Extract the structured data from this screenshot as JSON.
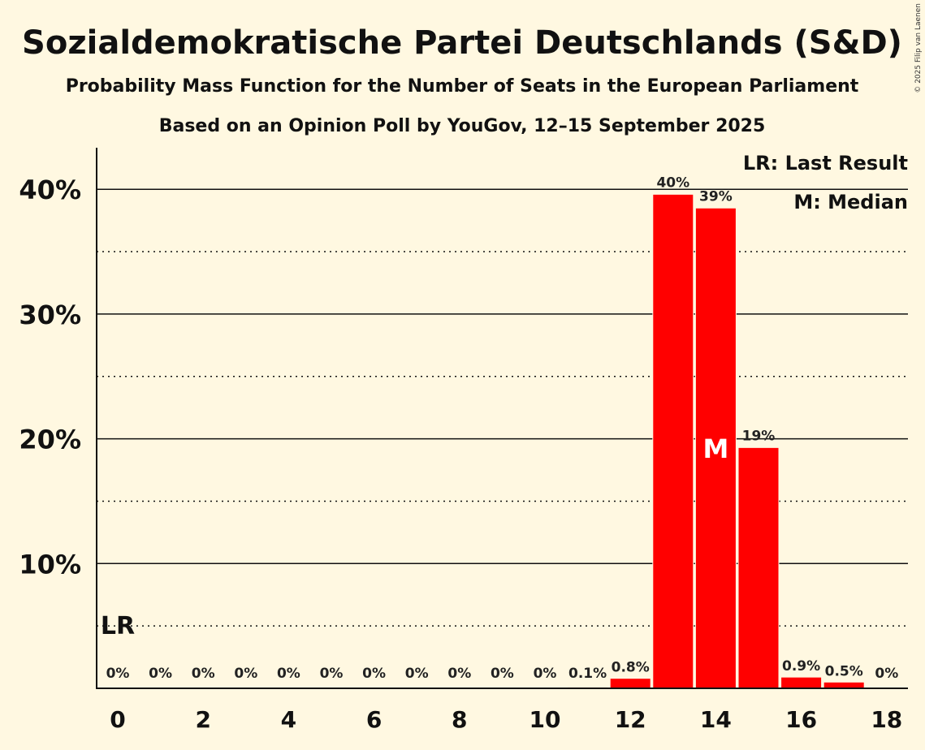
{
  "title": "Sozialdemokratische Partei Deutschlands (S&D)",
  "subtitle": "Probability Mass Function for the Number of Seats in the European Parliament",
  "subtitle2": "Based on an Opinion Poll by YouGov, 12–15 September 2025",
  "copyright": "© 2025 Filip van Laenen",
  "legend": {
    "lr": "LR: Last Result",
    "m": "M: Median"
  },
  "colors": {
    "bar": "#ff0000",
    "background": "#fff8e1"
  },
  "chart_data": {
    "type": "bar",
    "x": [
      0,
      1,
      2,
      3,
      4,
      5,
      6,
      7,
      8,
      9,
      10,
      11,
      12,
      13,
      14,
      15,
      16,
      17,
      18
    ],
    "values": [
      0,
      0,
      0,
      0,
      0,
      0,
      0,
      0,
      0,
      0,
      0,
      0.1,
      0.8,
      39.6,
      38.5,
      19.3,
      0.9,
      0.5,
      0
    ],
    "data_labels": [
      "0%",
      "0%",
      "0%",
      "0%",
      "0%",
      "0%",
      "0%",
      "0%",
      "0%",
      "0%",
      "0%",
      "0.1%",
      "0.8%",
      "40%",
      "39%",
      "19%",
      "0.9%",
      "0.5%",
      "0%"
    ],
    "x_ticks": [
      0,
      2,
      4,
      6,
      8,
      10,
      12,
      14,
      16,
      18
    ],
    "y_ticks": [
      10,
      20,
      30,
      40
    ],
    "y_tick_labels": [
      "10%",
      "20%",
      "30%",
      "40%"
    ],
    "ylim": [
      0,
      43
    ],
    "last_result_seat": 0,
    "last_result_label": "LR",
    "median_seat": 14,
    "median_label": "M",
    "legend_position": "top-right"
  }
}
